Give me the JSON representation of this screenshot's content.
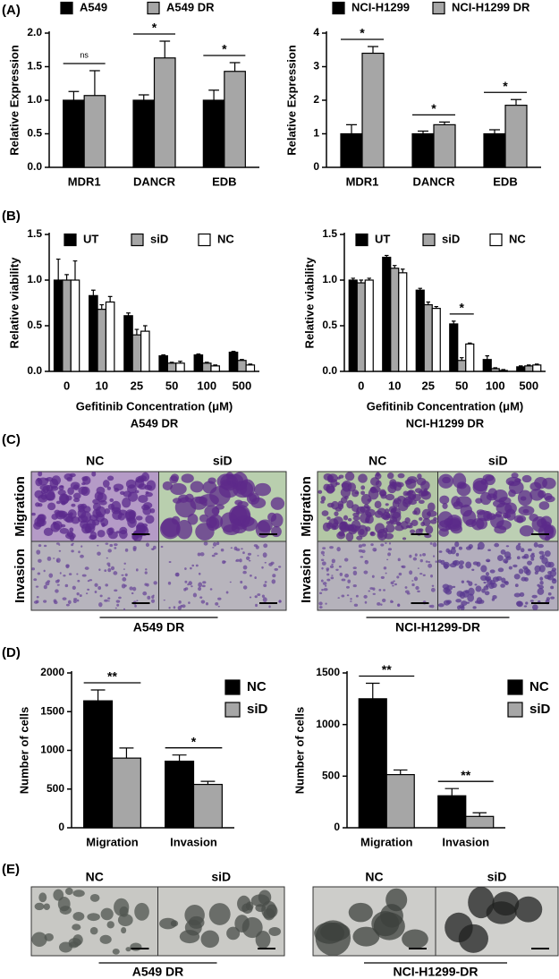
{
  "panel_labels": [
    "(A)",
    "(B)",
    "(C)",
    "(D)",
    "(E)"
  ],
  "chart_data": [
    {
      "type": "bar",
      "categories": [
        "MDR1",
        "DANCR",
        "EDB"
      ],
      "ylabel": "Relative Expression",
      "ylim": [
        0,
        2
      ],
      "yticks": [
        {
          "value": 0,
          "label": "0.0"
        },
        {
          "value": 0.5,
          "label": "0.5"
        },
        {
          "value": 1,
          "label": "1.0"
        },
        {
          "value": 1.5,
          "label": "1.5"
        },
        {
          "value": 2,
          "label": "2.0"
        }
      ],
      "legend": "top",
      "series": [
        {
          "name": "A549",
          "color": "#000000",
          "values": [
            1.0,
            1.0,
            1.0
          ],
          "errors": [
            0.13,
            0.08,
            0.15
          ]
        },
        {
          "name": "A549 DR",
          "color": "#a6a6a6",
          "values": [
            1.07,
            1.63,
            1.43
          ],
          "errors": [
            0.37,
            0.25,
            0.13
          ]
        }
      ],
      "significance": [
        "ns",
        "*",
        "*"
      ]
    },
    {
      "type": "bar",
      "categories": [
        "MDR1",
        "DANCR",
        "EDB"
      ],
      "ylabel": "Relative Expression",
      "ylim": [
        0,
        4
      ],
      "yticks": [
        0,
        1,
        2,
        3,
        4
      ],
      "legend": "top",
      "series": [
        {
          "name": "NCI-H1299",
          "color": "#000000",
          "values": [
            1.0,
            1.0,
            1.0
          ],
          "errors": [
            0.27,
            0.08,
            0.12
          ]
        },
        {
          "name": "NCI-H1299 DR",
          "color": "#a6a6a6",
          "values": [
            3.4,
            1.27,
            1.85
          ],
          "errors": [
            0.2,
            0.08,
            0.17
          ]
        }
      ],
      "significance": [
        "*",
        "*",
        "*"
      ]
    },
    {
      "type": "bar",
      "categories": [
        "0",
        "10",
        "25",
        "50",
        "100",
        "500"
      ],
      "ylabel": "Relative viability",
      "xlabel": "Gefitinib Concentration (μM)",
      "subtitle": "A549 DR",
      "ylim": [
        0,
        1.5
      ],
      "yticks": [
        {
          "value": 0,
          "label": "0.0"
        },
        {
          "value": 0.5,
          "label": "0.5"
        },
        {
          "value": 1,
          "label": "1.0"
        },
        {
          "value": 1.5,
          "label": "1.5"
        }
      ],
      "legend": "top",
      "series": [
        {
          "name": "UT",
          "color": "#000000",
          "values": [
            1.0,
            0.83,
            0.61,
            0.17,
            0.18,
            0.21
          ],
          "errors": [
            0.23,
            0.06,
            0.03,
            0.01,
            0.01,
            0.01
          ]
        },
        {
          "name": "siD",
          "color": "#a6a6a6",
          "values": [
            1.0,
            0.68,
            0.4,
            0.09,
            0.09,
            0.12
          ],
          "errors": [
            0.06,
            0.05,
            0.06,
            0.01,
            0.01,
            0.01
          ]
        },
        {
          "name": "NC",
          "color": "#ffffff",
          "values": [
            1.0,
            0.76,
            0.44,
            0.09,
            0.06,
            0.07
          ],
          "errors": [
            0.21,
            0.06,
            0.06,
            0.02,
            0.01,
            0.01
          ]
        }
      ]
    },
    {
      "type": "bar",
      "categories": [
        "0",
        "10",
        "25",
        "50",
        "100",
        "500"
      ],
      "ylabel": "Relative viability",
      "xlabel": "Gefitinib Concentration (μM)",
      "subtitle": "NCI-H1299 DR",
      "ylim": [
        0,
        1.5
      ],
      "yticks": [
        {
          "value": 0,
          "label": "0.0"
        },
        {
          "value": 0.5,
          "label": "0.5"
        },
        {
          "value": 1,
          "label": "1.0"
        },
        {
          "value": 1.5,
          "label": "1.5"
        }
      ],
      "legend": "top",
      "series": [
        {
          "name": "UT",
          "color": "#000000",
          "values": [
            1.0,
            1.25,
            0.89,
            0.52,
            0.13,
            0.05
          ],
          "errors": [
            0.02,
            0.02,
            0.02,
            0.03,
            0.04,
            0.01
          ]
        },
        {
          "name": "siD",
          "color": "#a6a6a6",
          "values": [
            0.97,
            1.13,
            0.73,
            0.12,
            0.03,
            0.06
          ],
          "errors": [
            0.03,
            0.03,
            0.03,
            0.03,
            0.01,
            0.01
          ]
        },
        {
          "name": "NC",
          "color": "#ffffff",
          "values": [
            1.0,
            1.08,
            0.69,
            0.3,
            0.01,
            0.07
          ],
          "errors": [
            0.02,
            0.04,
            0.02,
            0.01,
            0.01,
            0.01
          ]
        }
      ],
      "significance": [
        null,
        null,
        null,
        "*",
        null,
        null
      ]
    },
    {
      "type": "bar",
      "categories": [
        "Migration",
        "Invasion"
      ],
      "ylabel": "Number of cells",
      "ylim": [
        0,
        2000
      ],
      "yticks": [
        0,
        500,
        1000,
        1500,
        2000
      ],
      "legend": "right",
      "series": [
        {
          "name": "NC",
          "color": "#000000",
          "values": [
            1640,
            860
          ],
          "errors": [
            140,
            80
          ]
        },
        {
          "name": "siD",
          "color": "#a6a6a6",
          "values": [
            900,
            560
          ],
          "errors": [
            130,
            40
          ]
        }
      ],
      "significance": [
        "**",
        "*"
      ]
    },
    {
      "type": "bar",
      "categories": [
        "Migration",
        "Invasion"
      ],
      "ylabel": "Number of cells",
      "ylim": [
        0,
        1500
      ],
      "yticks": [
        0,
        500,
        1000,
        1500
      ],
      "legend": "right",
      "series": [
        {
          "name": "NC",
          "color": "#000000",
          "values": [
            1250,
            310
          ],
          "errors": [
            150,
            70
          ]
        },
        {
          "name": "siD",
          "color": "#a6a6a6",
          "values": [
            515,
            110
          ],
          "errors": [
            45,
            35
          ]
        }
      ],
      "significance": [
        "**",
        "**"
      ]
    }
  ],
  "panel_c": [
    {
      "columns": [
        "NC",
        "siD"
      ],
      "rows": [
        "Migration",
        "Invasion"
      ],
      "caption": "A549 DR"
    },
    {
      "columns": [
        "NC",
        "siD"
      ],
      "rows": [
        "Migration",
        "Invasion"
      ],
      "caption": "NCI-H1299-DR"
    }
  ],
  "panel_e": [
    {
      "columns": [
        "NC",
        "siD"
      ],
      "caption": "A549 DR"
    },
    {
      "columns": [
        "NC",
        "siD"
      ],
      "caption": "NCI-H1299-DR"
    }
  ]
}
